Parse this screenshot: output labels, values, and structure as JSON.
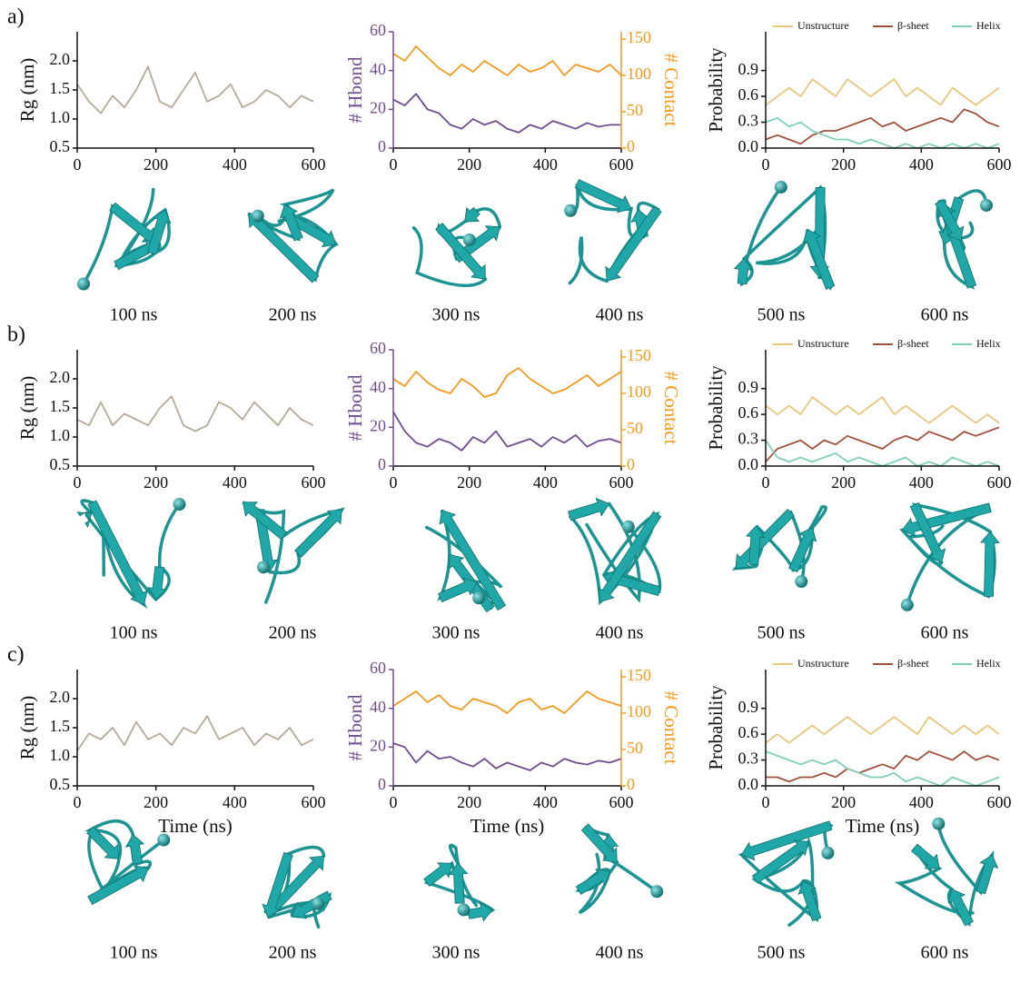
{
  "panels": [
    {
      "label": "a)",
      "snapshots": [
        "100 ns",
        "200 ns",
        "300 ns",
        "400 ns",
        "500 ns",
        "600 ns"
      ]
    },
    {
      "label": "b)",
      "snapshots": [
        "100 ns",
        "200 ns",
        "300 ns",
        "400 ns",
        "500 ns",
        "600 ns"
      ]
    },
    {
      "label": "c)",
      "snapshots": [
        "100 ns",
        "200 ns",
        "300 ns",
        "400 ns",
        "500 ns",
        "600 ns"
      ]
    }
  ],
  "chart_data": [
    {
      "type": "line",
      "ylabel": "Rg (nm)",
      "x": [
        0,
        30,
        60,
        90,
        120,
        150,
        180,
        210,
        240,
        270,
        300,
        330,
        360,
        390,
        420,
        450,
        480,
        510,
        540,
        570,
        600
      ],
      "xlim": [
        0,
        600
      ],
      "xticks": [
        0,
        200,
        400,
        600
      ],
      "ylim": [
        0.5,
        2.5
      ],
      "yticks": [
        0.5,
        {
          "value": 1,
          "label": "1.0"
        },
        1.5,
        {
          "value": 2,
          "label": "2.0"
        }
      ],
      "series": [
        {
          "color": "#b5aa99",
          "values": [
            1.6,
            1.3,
            1.1,
            1.4,
            1.2,
            1.5,
            1.9,
            1.3,
            1.2,
            1.5,
            1.8,
            1.3,
            1.4,
            1.6,
            1.2,
            1.3,
            1.5,
            1.4,
            1.2,
            1.4,
            1.3
          ]
        }
      ]
    },
    {
      "type": "line",
      "ylabel": "# Hbond",
      "y2label": "# Contact",
      "x": [
        0,
        30,
        60,
        90,
        120,
        150,
        180,
        210,
        240,
        270,
        300,
        330,
        360,
        390,
        420,
        450,
        480,
        510,
        540,
        570,
        600
      ],
      "xlim": [
        0,
        600
      ],
      "xticks": [
        0,
        200,
        400,
        600
      ],
      "ylim": [
        0,
        60
      ],
      "yticks": [
        0,
        20,
        40,
        60
      ],
      "y2lim": [
        0,
        160
      ],
      "y2ticks": [
        0,
        50,
        100,
        150
      ],
      "series": [
        {
          "color": "#f39a1d",
          "axis": "y2",
          "values": [
            130,
            120,
            140,
            125,
            110,
            100,
            115,
            105,
            120,
            110,
            100,
            115,
            105,
            110,
            120,
            100,
            115,
            110,
            105,
            115,
            100
          ]
        },
        {
          "color": "#6f4c8f",
          "values": [
            25,
            22,
            28,
            20,
            18,
            12,
            10,
            15,
            12,
            14,
            10,
            8,
            12,
            10,
            14,
            12,
            10,
            13,
            11,
            12,
            12
          ]
        }
      ]
    },
    {
      "type": "line",
      "ylabel": "Probability",
      "legend": "upper center",
      "x": [
        0,
        30,
        60,
        90,
        120,
        150,
        180,
        210,
        240,
        270,
        300,
        330,
        360,
        390,
        420,
        450,
        480,
        510,
        540,
        570,
        600
      ],
      "xlim": [
        0,
        600
      ],
      "xticks": [
        0,
        200,
        400,
        600
      ],
      "ylim": [
        0,
        1.35
      ],
      "yticks": [
        {
          "value": 0,
          "label": "0.0"
        },
        0.3,
        0.6,
        0.9
      ],
      "series": [
        {
          "name": "Unstructure",
          "color": "#e8c77f",
          "values": [
            0.5,
            0.6,
            0.7,
            0.6,
            0.8,
            0.7,
            0.6,
            0.8,
            0.7,
            0.6,
            0.7,
            0.8,
            0.6,
            0.7,
            0.6,
            0.5,
            0.7,
            0.6,
            0.5,
            0.6,
            0.7
          ]
        },
        {
          "name": "β-sheet",
          "color": "#a0523d",
          "values": [
            0.1,
            0.15,
            0.1,
            0.05,
            0.15,
            0.2,
            0.2,
            0.25,
            0.3,
            0.35,
            0.25,
            0.3,
            0.2,
            0.25,
            0.3,
            0.35,
            0.3,
            0.45,
            0.4,
            0.3,
            0.25
          ]
        },
        {
          "name": "Helix",
          "color": "#7fcfb9",
          "values": [
            0.3,
            0.35,
            0.25,
            0.3,
            0.2,
            0.15,
            0.1,
            0.1,
            0.05,
            0.1,
            0.05,
            0.0,
            0.05,
            0.0,
            0.05,
            0.0,
            0.05,
            0.0,
            0.05,
            0.0,
            0.05
          ]
        }
      ]
    },
    {
      "type": "line",
      "ylabel": "Rg (nm)",
      "x": [
        0,
        30,
        60,
        90,
        120,
        150,
        180,
        210,
        240,
        270,
        300,
        330,
        360,
        390,
        420,
        450,
        480,
        510,
        540,
        570,
        600
      ],
      "xlim": [
        0,
        600
      ],
      "xticks": [
        0,
        200,
        400,
        600
      ],
      "ylim": [
        0.5,
        2.5
      ],
      "yticks": [
        0.5,
        {
          "value": 1,
          "label": "1.0"
        },
        1.5,
        {
          "value": 2,
          "label": "2.0"
        }
      ],
      "series": [
        {
          "color": "#b5aa99",
          "values": [
            1.3,
            1.2,
            1.6,
            1.2,
            1.4,
            1.3,
            1.2,
            1.5,
            1.7,
            1.2,
            1.1,
            1.2,
            1.6,
            1.5,
            1.3,
            1.6,
            1.4,
            1.2,
            1.5,
            1.3,
            1.2
          ]
        }
      ]
    },
    {
      "type": "line",
      "ylabel": "# Hbond",
      "y2label": "# Contact",
      "x": [
        0,
        30,
        60,
        90,
        120,
        150,
        180,
        210,
        240,
        270,
        300,
        330,
        360,
        390,
        420,
        450,
        480,
        510,
        540,
        570,
        600
      ],
      "xlim": [
        0,
        600
      ],
      "xticks": [
        0,
        200,
        400,
        600
      ],
      "ylim": [
        0,
        60
      ],
      "yticks": [
        0,
        20,
        40,
        60
      ],
      "y2lim": [
        0,
        160
      ],
      "y2ticks": [
        0,
        50,
        100,
        150
      ],
      "series": [
        {
          "color": "#f39a1d",
          "axis": "y2",
          "values": [
            120,
            110,
            130,
            115,
            105,
            100,
            120,
            110,
            95,
            100,
            125,
            135,
            120,
            110,
            100,
            105,
            115,
            125,
            110,
            120,
            130
          ]
        },
        {
          "color": "#6f4c8f",
          "values": [
            28,
            18,
            12,
            10,
            14,
            12,
            8,
            15,
            12,
            18,
            10,
            12,
            14,
            10,
            15,
            12,
            16,
            10,
            13,
            14,
            12
          ]
        }
      ]
    },
    {
      "type": "line",
      "ylabel": "Probability",
      "legend": "upper center",
      "x": [
        0,
        30,
        60,
        90,
        120,
        150,
        180,
        210,
        240,
        270,
        300,
        330,
        360,
        390,
        420,
        450,
        480,
        510,
        540,
        570,
        600
      ],
      "xlim": [
        0,
        600
      ],
      "xticks": [
        0,
        200,
        400,
        600
      ],
      "ylim": [
        0,
        1.35
      ],
      "yticks": [
        {
          "value": 0,
          "label": "0.0"
        },
        0.3,
        0.6,
        0.9
      ],
      "series": [
        {
          "name": "Unstructure",
          "color": "#e8c77f",
          "values": [
            0.7,
            0.6,
            0.7,
            0.6,
            0.8,
            0.7,
            0.6,
            0.7,
            0.6,
            0.7,
            0.8,
            0.6,
            0.7,
            0.6,
            0.5,
            0.6,
            0.7,
            0.6,
            0.5,
            0.6,
            0.5
          ]
        },
        {
          "name": "β-sheet",
          "color": "#a0523d",
          "values": [
            0.05,
            0.2,
            0.25,
            0.3,
            0.2,
            0.3,
            0.25,
            0.35,
            0.3,
            0.25,
            0.2,
            0.3,
            0.35,
            0.3,
            0.4,
            0.35,
            0.3,
            0.4,
            0.35,
            0.4,
            0.45
          ]
        },
        {
          "name": "Helix",
          "color": "#7fcfb9",
          "values": [
            0.3,
            0.1,
            0.05,
            0.1,
            0.05,
            0.1,
            0.15,
            0.05,
            0.1,
            0.05,
            0.0,
            0.05,
            0.1,
            0.0,
            0.05,
            0.0,
            0.1,
            0.05,
            0.0,
            0.05,
            0.0
          ]
        }
      ]
    },
    {
      "type": "line",
      "ylabel": "Rg (nm)",
      "xlabel": "Time (ns)",
      "x": [
        0,
        30,
        60,
        90,
        120,
        150,
        180,
        210,
        240,
        270,
        300,
        330,
        360,
        390,
        420,
        450,
        480,
        510,
        540,
        570,
        600
      ],
      "xlim": [
        0,
        600
      ],
      "xticks": [
        0,
        200,
        400,
        600
      ],
      "ylim": [
        0.5,
        2.5
      ],
      "yticks": [
        0.5,
        {
          "value": 1,
          "label": "1.0"
        },
        1.5,
        {
          "value": 2,
          "label": "2.0"
        }
      ],
      "series": [
        {
          "color": "#b5aa99",
          "values": [
            1.1,
            1.4,
            1.3,
            1.5,
            1.2,
            1.6,
            1.3,
            1.4,
            1.2,
            1.5,
            1.4,
            1.7,
            1.3,
            1.4,
            1.5,
            1.2,
            1.4,
            1.3,
            1.5,
            1.2,
            1.3
          ]
        }
      ]
    },
    {
      "type": "line",
      "ylabel": "# Hbond",
      "y2label": "# Contact",
      "xlabel": "Time (ns)",
      "x": [
        0,
        30,
        60,
        90,
        120,
        150,
        180,
        210,
        240,
        270,
        300,
        330,
        360,
        390,
        420,
        450,
        480,
        510,
        540,
        570,
        600
      ],
      "xlim": [
        0,
        600
      ],
      "xticks": [
        0,
        200,
        400,
        600
      ],
      "ylim": [
        0,
        60
      ],
      "yticks": [
        0,
        20,
        40,
        60
      ],
      "y2lim": [
        0,
        160
      ],
      "y2ticks": [
        0,
        50,
        100,
        150
      ],
      "series": [
        {
          "color": "#f39a1d",
          "axis": "y2",
          "values": [
            110,
            120,
            130,
            115,
            125,
            110,
            105,
            120,
            115,
            110,
            100,
            115,
            120,
            105,
            110,
            100,
            115,
            130,
            120,
            115,
            110
          ]
        },
        {
          "color": "#6f4c8f",
          "values": [
            22,
            20,
            12,
            18,
            14,
            15,
            12,
            10,
            14,
            9,
            12,
            10,
            8,
            12,
            10,
            14,
            12,
            11,
            13,
            12,
            14
          ]
        }
      ]
    },
    {
      "type": "line",
      "ylabel": "Probability",
      "xlabel": "Time (ns)",
      "legend": "upper center",
      "x": [
        0,
        30,
        60,
        90,
        120,
        150,
        180,
        210,
        240,
        270,
        300,
        330,
        360,
        390,
        420,
        450,
        480,
        510,
        540,
        570,
        600
      ],
      "xlim": [
        0,
        600
      ],
      "xticks": [
        0,
        200,
        400,
        600
      ],
      "ylim": [
        0,
        1.35
      ],
      "yticks": [
        {
          "value": 0,
          "label": "0.0"
        },
        0.3,
        0.6,
        0.9
      ],
      "series": [
        {
          "name": "Unstructure",
          "color": "#e8c77f",
          "values": [
            0.5,
            0.6,
            0.5,
            0.6,
            0.7,
            0.6,
            0.7,
            0.8,
            0.7,
            0.6,
            0.7,
            0.8,
            0.7,
            0.6,
            0.8,
            0.7,
            0.6,
            0.7,
            0.6,
            0.7,
            0.6
          ]
        },
        {
          "name": "β-sheet",
          "color": "#a0523d",
          "values": [
            0.1,
            0.1,
            0.05,
            0.1,
            0.1,
            0.15,
            0.1,
            0.2,
            0.15,
            0.2,
            0.25,
            0.2,
            0.35,
            0.3,
            0.4,
            0.35,
            0.3,
            0.4,
            0.3,
            0.35,
            0.3
          ]
        },
        {
          "name": "Helix",
          "color": "#7fcfb9",
          "values": [
            0.4,
            0.35,
            0.3,
            0.25,
            0.3,
            0.25,
            0.3,
            0.2,
            0.15,
            0.1,
            0.1,
            0.15,
            0.05,
            0.1,
            0.05,
            0.0,
            0.1,
            0.05,
            0.0,
            0.05,
            0.1
          ]
        }
      ]
    }
  ]
}
